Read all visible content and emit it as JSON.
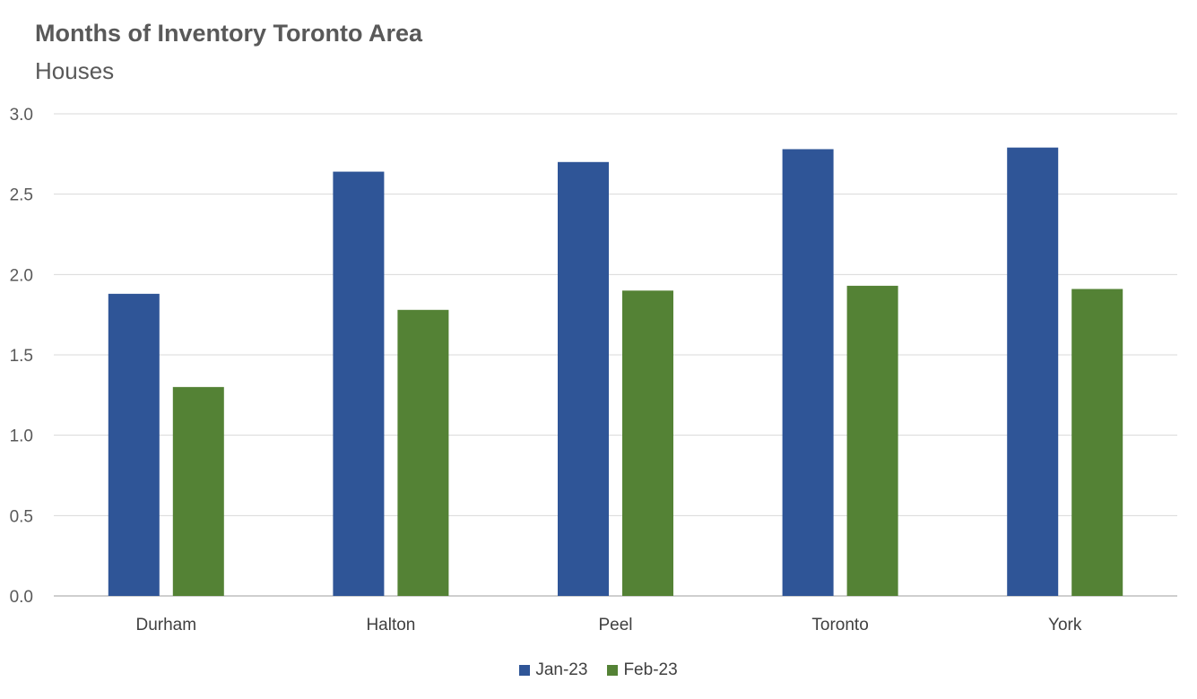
{
  "chart_data": {
    "type": "bar",
    "title": "Months of Inventory Toronto Area",
    "subtitle": "Houses",
    "xlabel": "",
    "ylabel": "",
    "categories": [
      "Durham",
      "Halton",
      "Peel",
      "Toronto",
      "York"
    ],
    "series": [
      {
        "name": "Jan-23",
        "color": "#2F5597",
        "values": [
          1.88,
          2.64,
          2.7,
          2.78,
          2.79
        ]
      },
      {
        "name": "Feb-23",
        "color": "#548235",
        "values": [
          1.3,
          1.78,
          1.9,
          1.93,
          1.91
        ]
      }
    ],
    "ylim": [
      0,
      3.0
    ],
    "yticks": [
      "0.0",
      "0.5",
      "1.0",
      "1.5",
      "2.0",
      "2.5",
      "3.0"
    ],
    "grid": true,
    "legend_position": "bottom"
  }
}
